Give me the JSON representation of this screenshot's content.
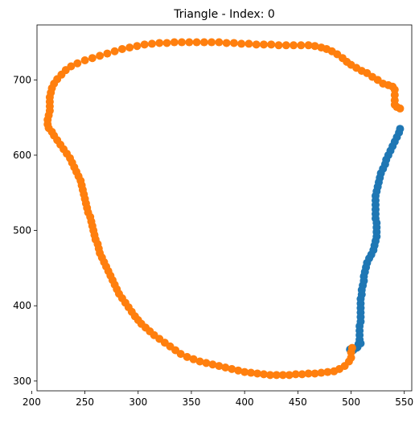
{
  "chart_data": {
    "type": "scatter",
    "title": "Triangle - Index: 0",
    "xlabel": "",
    "ylabel": "",
    "xlim": [
      205,
      557
    ],
    "ylim": [
      287,
      773
    ],
    "xticks": [
      200,
      250,
      300,
      350,
      400,
      450,
      500,
      550
    ],
    "yticks": [
      300,
      400,
      500,
      600,
      700
    ],
    "grid": false,
    "series": [
      {
        "color": "#1f77b4",
        "points": [
          [
            546,
            635
          ],
          [
            545,
            630
          ],
          [
            543,
            624
          ],
          [
            541,
            618
          ],
          [
            539,
            612
          ],
          [
            537,
            606
          ],
          [
            535,
            600
          ],
          [
            533,
            594
          ],
          [
            532,
            588
          ],
          [
            530,
            582
          ],
          [
            528,
            576
          ],
          [
            527,
            570
          ],
          [
            526,
            564
          ],
          [
            525,
            558
          ],
          [
            524,
            552
          ],
          [
            523,
            546
          ],
          [
            523,
            540
          ],
          [
            523,
            534
          ],
          [
            523,
            528
          ],
          [
            523,
            522
          ],
          [
            523,
            516
          ],
          [
            524,
            510
          ],
          [
            524,
            504
          ],
          [
            524,
            498
          ],
          [
            524,
            492
          ],
          [
            523,
            486
          ],
          [
            522,
            480
          ],
          [
            521,
            474
          ],
          [
            519,
            468
          ],
          [
            517,
            463
          ],
          [
            515,
            457
          ],
          [
            514,
            451
          ],
          [
            513,
            445
          ],
          [
            512,
            439
          ],
          [
            512,
            433
          ],
          [
            511,
            427
          ],
          [
            510,
            421
          ],
          [
            510,
            415
          ],
          [
            509,
            409
          ],
          [
            509,
            403
          ],
          [
            509,
            397
          ],
          [
            509,
            391
          ],
          [
            509,
            385
          ],
          [
            509,
            379
          ],
          [
            508,
            373
          ],
          [
            508,
            367
          ],
          [
            508,
            361
          ],
          [
            508,
            355
          ],
          [
            507,
            349
          ],
          [
            505,
            344
          ],
          [
            502,
            341
          ],
          [
            499,
            342
          ],
          [
            506,
            345
          ],
          [
            509,
            350
          ]
        ]
      },
      {
        "color": "#ff7f0e",
        "points": [
          [
            546,
            662
          ],
          [
            543,
            664
          ],
          [
            541,
            667
          ],
          [
            541,
            673
          ],
          [
            541,
            680
          ],
          [
            541,
            687
          ],
          [
            539,
            691
          ],
          [
            535,
            693
          ],
          [
            530,
            695
          ],
          [
            525,
            700
          ],
          [
            520,
            704
          ],
          [
            515,
            709
          ],
          [
            510,
            712
          ],
          [
            505,
            716
          ],
          [
            500,
            720
          ],
          [
            496,
            724
          ],
          [
            492,
            729
          ],
          [
            487,
            734
          ],
          [
            482,
            738
          ],
          [
            477,
            741
          ],
          [
            472,
            743
          ],
          [
            466,
            745
          ],
          [
            460,
            746
          ],
          [
            453,
            746
          ],
          [
            446,
            746
          ],
          [
            439,
            746
          ],
          [
            432,
            746
          ],
          [
            425,
            747
          ],
          [
            418,
            747
          ],
          [
            411,
            747
          ],
          [
            404,
            748
          ],
          [
            397,
            748
          ],
          [
            390,
            749
          ],
          [
            383,
            749
          ],
          [
            376,
            750
          ],
          [
            369,
            750
          ],
          [
            362,
            750
          ],
          [
            355,
            750
          ],
          [
            348,
            750
          ],
          [
            341,
            750
          ],
          [
            334,
            750
          ],
          [
            327,
            749
          ],
          [
            320,
            749
          ],
          [
            313,
            748
          ],
          [
            306,
            747
          ],
          [
            299,
            745
          ],
          [
            292,
            743
          ],
          [
            285,
            741
          ],
          [
            278,
            738
          ],
          [
            271,
            735
          ],
          [
            264,
            732
          ],
          [
            257,
            729
          ],
          [
            250,
            726
          ],
          [
            243,
            722
          ],
          [
            237,
            718
          ],
          [
            232,
            713
          ],
          [
            228,
            707
          ],
          [
            224,
            701
          ],
          [
            221,
            695
          ],
          [
            219,
            689
          ],
          [
            218,
            683
          ],
          [
            217,
            677
          ],
          [
            217,
            671
          ],
          [
            217,
            665
          ],
          [
            217,
            659
          ],
          [
            216,
            653
          ],
          [
            215,
            647
          ],
          [
            215,
            641
          ],
          [
            216,
            636
          ],
          [
            219,
            631
          ],
          [
            221,
            626
          ],
          [
            224,
            620
          ],
          [
            227,
            614
          ],
          [
            230,
            608
          ],
          [
            233,
            602
          ],
          [
            236,
            596
          ],
          [
            238,
            590
          ],
          [
            240,
            584
          ],
          [
            242,
            578
          ],
          [
            244,
            572
          ],
          [
            246,
            566
          ],
          [
            247,
            560
          ],
          [
            248,
            554
          ],
          [
            249,
            548
          ],
          [
            250,
            542
          ],
          [
            251,
            536
          ],
          [
            252,
            530
          ],
          [
            253,
            524
          ],
          [
            255,
            518
          ],
          [
            256,
            512
          ],
          [
            257,
            506
          ],
          [
            258,
            500
          ],
          [
            259,
            494
          ],
          [
            260,
            488
          ],
          [
            262,
            482
          ],
          [
            263,
            476
          ],
          [
            264,
            470
          ],
          [
            266,
            464
          ],
          [
            268,
            458
          ],
          [
            270,
            452
          ],
          [
            272,
            446
          ],
          [
            274,
            440
          ],
          [
            276,
            434
          ],
          [
            278,
            428
          ],
          [
            280,
            422
          ],
          [
            282,
            416
          ],
          [
            285,
            410
          ],
          [
            288,
            404
          ],
          [
            291,
            398
          ],
          [
            294,
            392
          ],
          [
            297,
            386
          ],
          [
            300,
            381
          ],
          [
            303,
            376
          ],
          [
            307,
            371
          ],
          [
            311,
            366
          ],
          [
            315,
            361
          ],
          [
            320,
            356
          ],
          [
            325,
            351
          ],
          [
            330,
            346
          ],
          [
            335,
            341
          ],
          [
            340,
            336
          ],
          [
            346,
            332
          ],
          [
            352,
            329
          ],
          [
            358,
            326
          ],
          [
            364,
            324
          ],
          [
            370,
            322
          ],
          [
            376,
            320
          ],
          [
            382,
            318
          ],
          [
            388,
            316
          ],
          [
            394,
            314
          ],
          [
            400,
            312
          ],
          [
            406,
            311
          ],
          [
            412,
            310
          ],
          [
            418,
            309
          ],
          [
            424,
            308
          ],
          [
            430,
            308
          ],
          [
            436,
            308
          ],
          [
            442,
            308
          ],
          [
            448,
            309
          ],
          [
            454,
            309
          ],
          [
            460,
            310
          ],
          [
            466,
            310
          ],
          [
            472,
            311
          ],
          [
            478,
            312
          ],
          [
            484,
            313
          ],
          [
            489,
            316
          ],
          [
            494,
            320
          ],
          [
            498,
            326
          ],
          [
            500,
            331
          ],
          [
            500,
            338
          ],
          [
            501,
            344
          ]
        ]
      }
    ]
  }
}
